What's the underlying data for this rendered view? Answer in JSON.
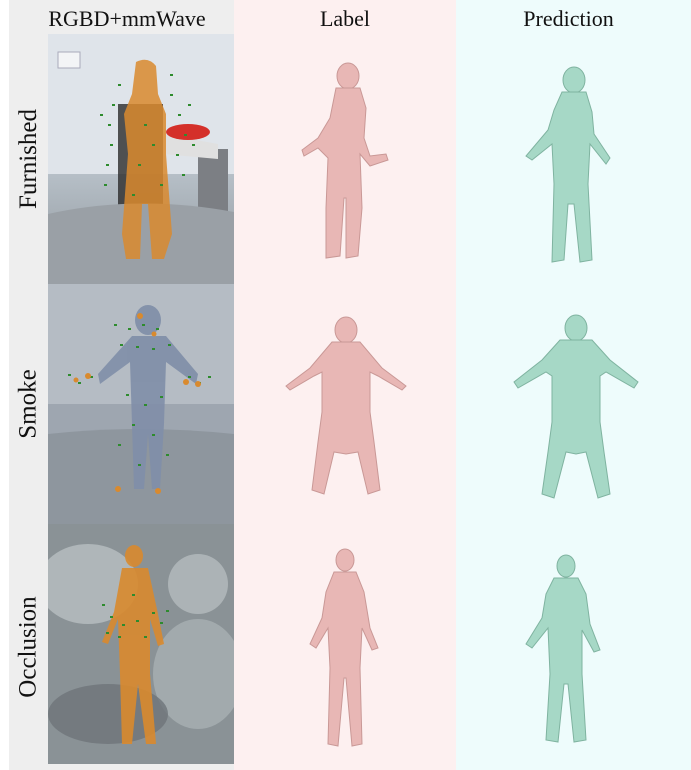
{
  "columns": [
    "RGBD+mmWave",
    "Label",
    "Prediction"
  ],
  "rows": [
    "Furnished",
    "Smoke",
    "Occlusion"
  ],
  "colors": {
    "label_mesh": "#e8b7b5",
    "prediction_mesh": "#a6d8c6",
    "points_orange": "#d98a2e",
    "points_green": "#2e8b2e"
  }
}
